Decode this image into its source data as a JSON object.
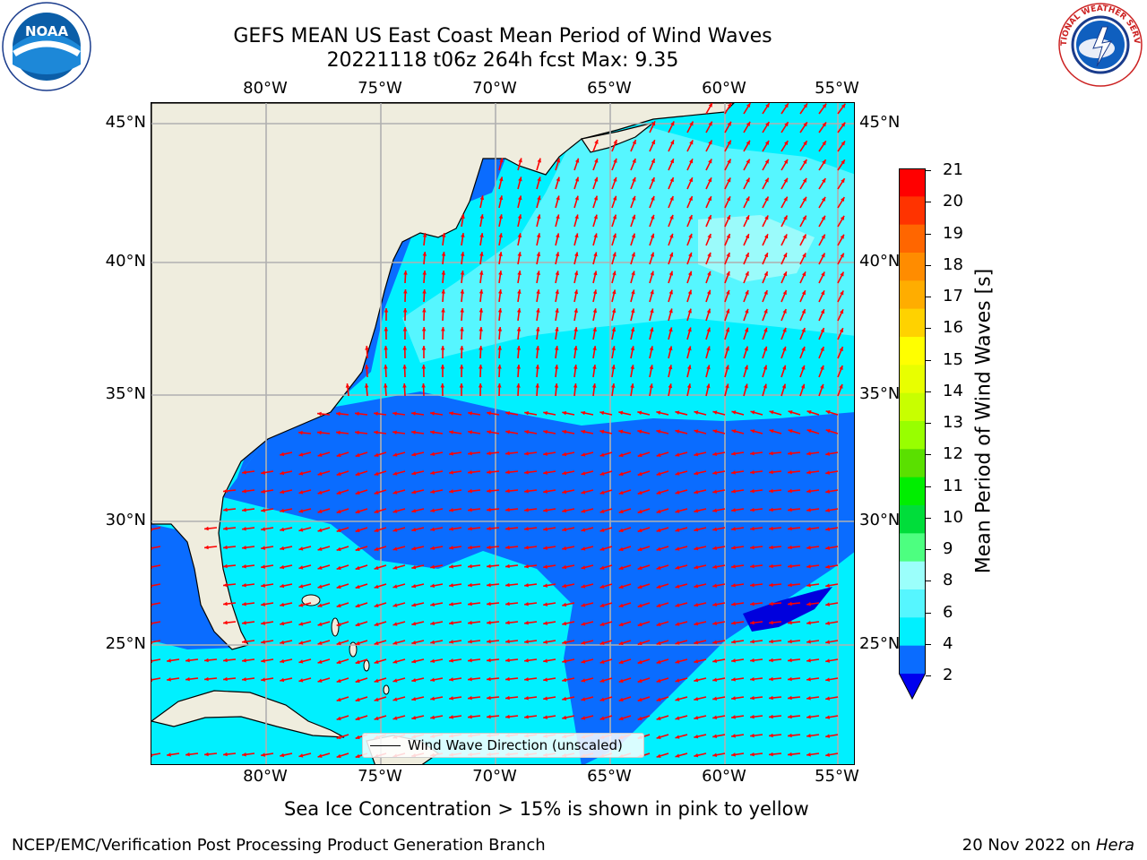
{
  "header": {
    "title_line1": "GEFS MEAN US East Coast Mean Period of Wind Waves",
    "title_line2": "20221118 t06z 264h fcst   Max: 9.35"
  },
  "logos": {
    "left": {
      "name": "noaa-logo",
      "text": "NOAA",
      "ring_text": "NATIONAL OCEANIC AND ATMOSPHERIC ADMINISTRATION · U.S. DEPARTMENT OF COMMERCE"
    },
    "right": {
      "name": "nws-logo",
      "ring_text": "NATIONAL WEATHER SERVICE"
    }
  },
  "map": {
    "lon_labels": [
      "80°W",
      "75°W",
      "70°W",
      "65°W",
      "60°W",
      "55°W"
    ],
    "lat_labels": [
      "45°N",
      "40°N",
      "35°N",
      "30°N",
      "25°N"
    ],
    "legend_label": "Wind Wave Direction (unscaled)",
    "colors": {
      "land": "#efedde",
      "ocean_2_4": "#0a6cff",
      "ocean_4_6": "#00f0ff",
      "ocean_6_8": "#56f6ff",
      "ocean_8_9": "#9bfbfb",
      "ocean_lt2": "#0000dd",
      "arrow": "#ff0000",
      "grid": "#b0b0b0"
    }
  },
  "colorbar": {
    "title": "Mean Period of Wind Waves [s]",
    "ticks": [
      "21",
      "20",
      "19",
      "18",
      "17",
      "16",
      "15",
      "14",
      "13",
      "12",
      "11",
      "10",
      "9",
      "8",
      "6",
      "4",
      "2"
    ],
    "colors_top_to_bottom": [
      "#ff0000",
      "#ff3300",
      "#ff6600",
      "#ff8c00",
      "#ffad00",
      "#ffd200",
      "#ffff00",
      "#e8ff00",
      "#c8ff00",
      "#98ff00",
      "#5ae000",
      "#00ee00",
      "#00dd3a",
      "#4dff80",
      "#9bfffb",
      "#56f6ff",
      "#00f0ff",
      "#0a6cff"
    ],
    "under_color": "#0000ee"
  },
  "footer": {
    "note": "Sea Ice Concentration > 15% is shown in pink to yellow",
    "credit": "NCEP/EMC/Verification Post Processing Product Generation Branch",
    "date": "20 Nov 2022 on",
    "host": "Hera"
  }
}
